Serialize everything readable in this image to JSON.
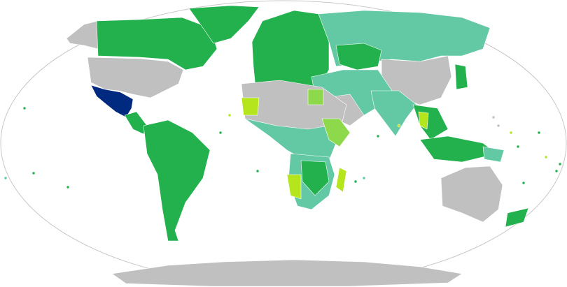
{
  "map": {
    "type": "world choropleth",
    "highlighted_country": "Mexico",
    "colors": {
      "highlight": "#002a80",
      "green": "#22b14c",
      "teal": "#63c9a5",
      "light_green": "#8ed84c",
      "yellow_green": "#b5e61d",
      "no_data": "#c0c0c0",
      "ocean": "#ffffff",
      "border": "#ffffff",
      "frame": "#c8c8c8"
    }
  }
}
